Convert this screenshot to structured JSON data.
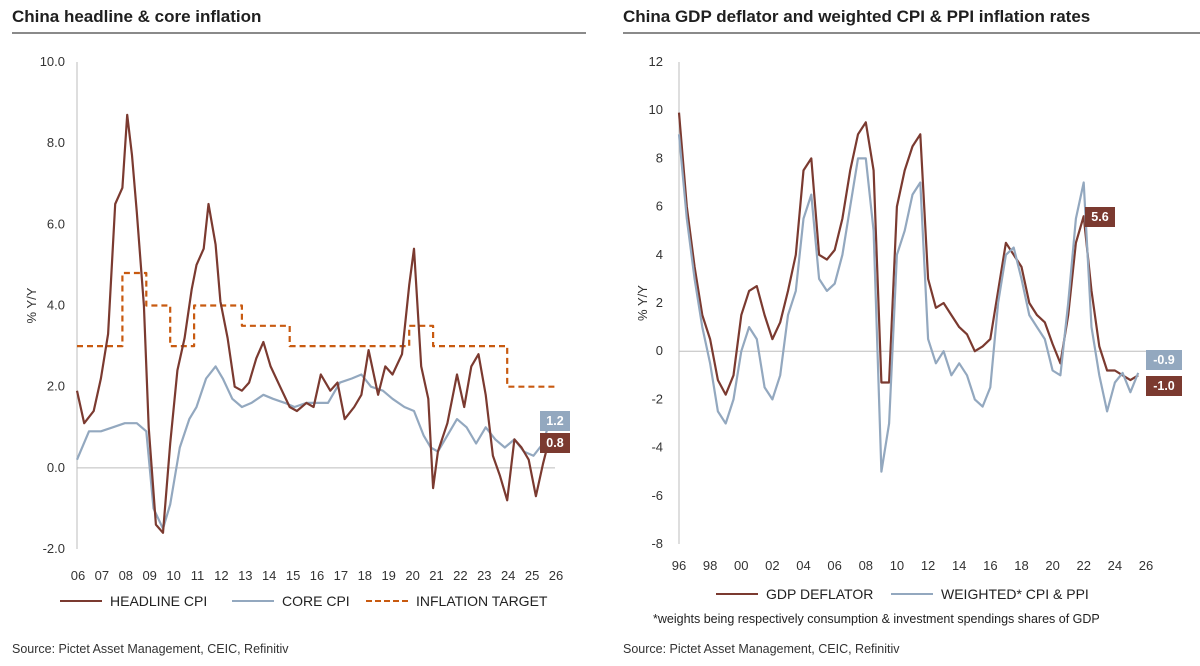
{
  "left": {
    "title": "China headline & core inflation",
    "source": "Source: Pictet Asset Management, CEIC, Refinitiv",
    "legend": [
      "HEADLINE CPI",
      "CORE CPI",
      "INFLATION TARGET"
    ],
    "badges": {
      "core_last": "1.2",
      "headline_last": "0.8"
    },
    "colors": {
      "headline": "#7b3a30",
      "core": "#93a8bf",
      "target": "#c85a10"
    }
  },
  "right": {
    "title": "China GDP deflator and weighted CPI & PPI inflation rates",
    "source": "Source: Pictet Asset Management, CEIC, Refinitiv",
    "legend": [
      "GDP DEFLATOR",
      "WEIGHTED* CPI & PPI"
    ],
    "footnote": "*weights being respectively consumption & investment spendings shares of GDP",
    "badges": {
      "peak": "5.6",
      "weighted_last": "-0.9",
      "deflator_last": "-1.0"
    },
    "colors": {
      "deflator": "#7b3a30",
      "weighted": "#93a8bf"
    }
  },
  "chart_data": [
    {
      "type": "line",
      "title": "China headline & core inflation",
      "xlabel": "",
      "ylabel": "% Y/Y",
      "ylim": [
        -2.0,
        10.0
      ],
      "yticks": [
        "10.0",
        "8.0",
        "6.0",
        "4.0",
        "2.0",
        "0.0",
        "-2.0"
      ],
      "xticks": [
        "06",
        "07",
        "08",
        "09",
        "10",
        "11",
        "12",
        "13",
        "14",
        "15",
        "16",
        "17",
        "18",
        "19",
        "20",
        "21",
        "22",
        "23",
        "24",
        "25",
        "26"
      ],
      "series": [
        {
          "name": "HEADLINE CPI",
          "x": [
            2006.0,
            2006.3,
            2006.7,
            2007.0,
            2007.3,
            2007.6,
            2007.9,
            2008.1,
            2008.3,
            2008.5,
            2008.8,
            2009.0,
            2009.3,
            2009.6,
            2009.9,
            2010.2,
            2010.5,
            2010.8,
            2011.0,
            2011.3,
            2011.5,
            2011.8,
            2012.0,
            2012.3,
            2012.6,
            2012.9,
            2013.2,
            2013.5,
            2013.8,
            2014.1,
            2014.5,
            2014.9,
            2015.2,
            2015.6,
            2015.9,
            2016.2,
            2016.6,
            2016.9,
            2017.2,
            2017.6,
            2017.9,
            2018.2,
            2018.6,
            2018.9,
            2019.2,
            2019.6,
            2019.9,
            2020.1,
            2020.4,
            2020.7,
            2020.9,
            2021.1,
            2021.5,
            2021.9,
            2022.2,
            2022.5,
            2022.8,
            2023.1,
            2023.4,
            2023.7,
            2024.0,
            2024.3,
            2024.6,
            2024.9,
            2025.2,
            2025.5,
            2025.8
          ],
          "values": [
            1.9,
            1.1,
            1.4,
            2.2,
            3.3,
            6.5,
            6.9,
            8.7,
            7.7,
            6.3,
            4.0,
            1.0,
            -1.4,
            -1.6,
            0.6,
            2.4,
            3.2,
            4.4,
            5.0,
            5.4,
            6.5,
            5.5,
            4.1,
            3.2,
            2.0,
            1.9,
            2.1,
            2.7,
            3.1,
            2.5,
            2.0,
            1.5,
            1.4,
            1.6,
            1.5,
            2.3,
            1.9,
            2.1,
            1.2,
            1.5,
            1.8,
            2.9,
            1.8,
            2.5,
            2.3,
            2.8,
            4.5,
            5.4,
            2.5,
            1.7,
            -0.5,
            0.4,
            1.1,
            2.3,
            1.5,
            2.5,
            2.8,
            1.8,
            0.3,
            -0.2,
            -0.8,
            0.7,
            0.5,
            0.2,
            -0.7,
            0.1,
            0.8
          ]
        },
        {
          "name": "CORE CPI",
          "x": [
            2006.0,
            2006.5,
            2007.0,
            2007.5,
            2008.0,
            2008.5,
            2008.9,
            2009.2,
            2009.6,
            2009.9,
            2010.3,
            2010.7,
            2011.0,
            2011.4,
            2011.8,
            2012.1,
            2012.5,
            2012.9,
            2013.3,
            2013.8,
            2014.2,
            2014.7,
            2015.1,
            2015.6,
            2016.0,
            2016.5,
            2017.0,
            2017.5,
            2017.9,
            2018.3,
            2018.8,
            2019.2,
            2019.7,
            2020.1,
            2020.5,
            2020.8,
            2021.1,
            2021.5,
            2021.9,
            2022.3,
            2022.7,
            2023.1,
            2023.5,
            2023.9,
            2024.3,
            2024.7,
            2025.1,
            2025.5,
            2025.8
          ],
          "values": [
            0.2,
            0.9,
            0.9,
            1.0,
            1.1,
            1.1,
            0.9,
            -1.0,
            -1.5,
            -0.9,
            0.5,
            1.2,
            1.5,
            2.2,
            2.5,
            2.2,
            1.7,
            1.5,
            1.6,
            1.8,
            1.7,
            1.6,
            1.5,
            1.6,
            1.6,
            1.6,
            2.1,
            2.2,
            2.3,
            2.0,
            1.9,
            1.7,
            1.5,
            1.4,
            0.8,
            0.5,
            0.4,
            0.8,
            1.2,
            1.0,
            0.6,
            1.0,
            0.7,
            0.5,
            0.7,
            0.4,
            0.3,
            0.6,
            1.2
          ]
        },
        {
          "name": "INFLATION TARGET",
          "x": [
            2006.0,
            2007.9,
            2007.9,
            2008.9,
            2008.9,
            2009.9,
            2009.9,
            2010.9,
            2010.9,
            2012.9,
            2012.9,
            2014.9,
            2014.9,
            2019.9,
            2019.9,
            2020.9,
            2020.9,
            2024.0,
            2024.0,
            2026.0
          ],
          "values": [
            3.0,
            3.0,
            4.8,
            4.8,
            4.0,
            4.0,
            3.0,
            3.0,
            4.0,
            4.0,
            3.5,
            3.5,
            3.0,
            3.0,
            3.5,
            3.5,
            3.0,
            3.0,
            2.0,
            2.0
          ]
        }
      ]
    },
    {
      "type": "line",
      "title": "China GDP deflator and weighted CPI & PPI inflation rates",
      "xlabel": "",
      "ylabel": "% Y/Y",
      "ylim": [
        -8,
        12
      ],
      "yticks": [
        "12",
        "10",
        "8",
        "6",
        "4",
        "2",
        "0",
        "-2",
        "-4",
        "-6",
        "-8"
      ],
      "xticks": [
        "96",
        "98",
        "00",
        "02",
        "04",
        "06",
        "08",
        "10",
        "12",
        "14",
        "16",
        "18",
        "20",
        "22",
        "24",
        "26"
      ],
      "series": [
        {
          "name": "GDP DEFLATOR",
          "x": [
            1996.0,
            1996.5,
            1997.0,
            1997.5,
            1998.0,
            1998.5,
            1999.0,
            1999.5,
            2000.0,
            2000.5,
            2001.0,
            2001.5,
            2002.0,
            2002.5,
            2003.0,
            2003.5,
            2004.0,
            2004.5,
            2005.0,
            2005.5,
            2006.0,
            2006.5,
            2007.0,
            2007.5,
            2008.0,
            2008.5,
            2009.0,
            2009.5,
            2010.0,
            2010.5,
            2011.0,
            2011.5,
            2012.0,
            2012.5,
            2013.0,
            2013.5,
            2014.0,
            2014.5,
            2015.0,
            2015.5,
            2016.0,
            2016.5,
            2017.0,
            2017.5,
            2018.0,
            2018.5,
            2019.0,
            2019.5,
            2020.0,
            2020.5,
            2021.0,
            2021.5,
            2022.0,
            2022.5,
            2023.0,
            2023.5,
            2024.0,
            2024.5,
            2025.0,
            2025.5
          ],
          "values": [
            9.9,
            6.0,
            3.5,
            1.5,
            0.5,
            -1.2,
            -1.8,
            -1.0,
            1.5,
            2.5,
            2.7,
            1.5,
            0.5,
            1.2,
            2.5,
            4.0,
            7.5,
            8.0,
            4.0,
            3.8,
            4.2,
            5.5,
            7.5,
            9.0,
            9.5,
            7.5,
            -1.3,
            -1.3,
            6.0,
            7.5,
            8.5,
            9.0,
            3.0,
            1.8,
            2.0,
            1.5,
            1.0,
            0.7,
            0.0,
            0.2,
            0.5,
            2.5,
            4.5,
            4.0,
            3.5,
            2.0,
            1.5,
            1.2,
            0.3,
            -0.5,
            1.5,
            4.5,
            5.6,
            2.5,
            0.2,
            -0.8,
            -0.8,
            -1.0,
            -1.2,
            -1.0
          ]
        },
        {
          "name": "WEIGHTED* CPI & PPI",
          "x": [
            1996.0,
            1996.5,
            1997.0,
            1997.5,
            1998.0,
            1998.5,
            1999.0,
            1999.5,
            2000.0,
            2000.5,
            2001.0,
            2001.5,
            2002.0,
            2002.5,
            2003.0,
            2003.5,
            2004.0,
            2004.5,
            2005.0,
            2005.5,
            2006.0,
            2006.5,
            2007.0,
            2007.5,
            2008.0,
            2008.5,
            2009.0,
            2009.5,
            2010.0,
            2010.5,
            2011.0,
            2011.5,
            2012.0,
            2012.5,
            2013.0,
            2013.5,
            2014.0,
            2014.5,
            2015.0,
            2015.5,
            2016.0,
            2016.5,
            2017.0,
            2017.5,
            2018.0,
            2018.5,
            2019.0,
            2019.5,
            2020.0,
            2020.5,
            2021.0,
            2021.5,
            2022.0,
            2022.5,
            2023.0,
            2023.5,
            2024.0,
            2024.5,
            2025.0,
            2025.5
          ],
          "values": [
            9.0,
            5.5,
            3.0,
            1.0,
            -0.5,
            -2.5,
            -3.0,
            -2.0,
            0.0,
            1.0,
            0.5,
            -1.5,
            -2.0,
            -1.0,
            1.5,
            2.5,
            5.5,
            6.5,
            3.0,
            2.5,
            2.8,
            4.0,
            6.0,
            8.0,
            8.0,
            5.0,
            -5.0,
            -3.0,
            4.0,
            5.0,
            6.5,
            7.0,
            0.5,
            -0.5,
            0.0,
            -1.0,
            -0.5,
            -1.0,
            -2.0,
            -2.3,
            -1.5,
            2.0,
            4.0,
            4.3,
            3.0,
            1.5,
            1.0,
            0.5,
            -0.8,
            -1.0,
            2.0,
            5.5,
            7.0,
            1.0,
            -1.0,
            -2.5,
            -1.3,
            -0.9,
            -1.7,
            -0.9
          ]
        }
      ]
    }
  ]
}
